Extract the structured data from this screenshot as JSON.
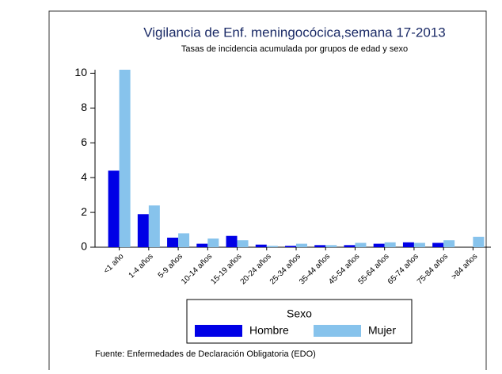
{
  "chart_data": {
    "type": "bar",
    "title": "Vigilancia de Enf. meningocócica,semana 17-2013",
    "subtitle": "Tasas de incidencia acumulada por grupos de edad y sexo",
    "categories": [
      "<1 año",
      "1-4 años",
      "5-9 años",
      "10-14 años",
      "15-19 años",
      "20-24 años",
      "25-34 años",
      "35-44 años",
      "45-54 años",
      "55-64 años",
      "65-74 años",
      "75-84 años",
      ">84 años"
    ],
    "series": [
      {
        "name": "Hombre",
        "color": "#0000e6",
        "values": [
          4.4,
          1.9,
          0.55,
          0.2,
          0.65,
          0.15,
          0.08,
          0.12,
          0.12,
          0.2,
          0.28,
          0.25,
          0
        ]
      },
      {
        "name": "Mujer",
        "color": "#87c3ec",
        "values": [
          10.2,
          2.4,
          0.8,
          0.5,
          0.4,
          0.08,
          0.2,
          0.12,
          0.25,
          0.28,
          0.25,
          0.4,
          0.6
        ]
      }
    ],
    "ylim": [
      0,
      10.2
    ],
    "yticks": [
      0,
      2,
      4,
      6,
      8,
      10
    ],
    "legend_title": "Sexo",
    "source": "Fuente: Enfermedades de Declaración Obligatoria (EDO)"
  }
}
